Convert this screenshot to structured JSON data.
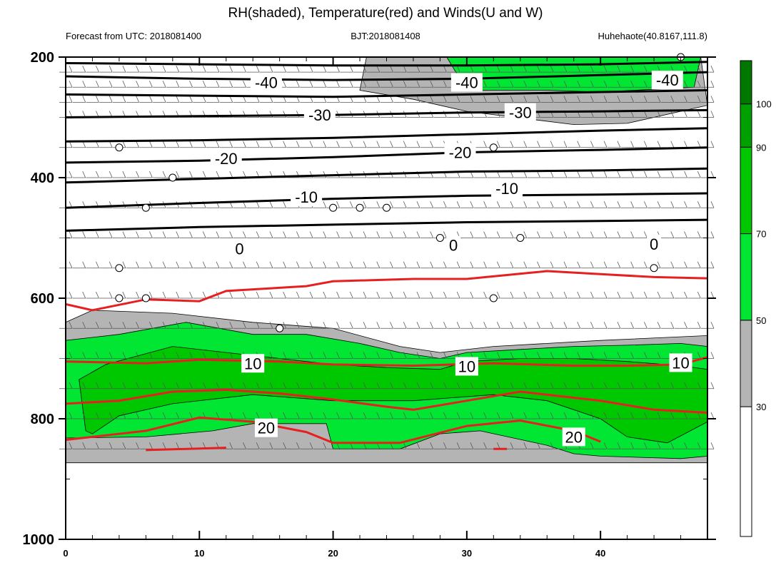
{
  "chart_data": {
    "type": "contour",
    "title": "RH(shaded), Temperature(red) and Winds(U and W)",
    "subtitle_left": "Forecast from UTC: 2018081400",
    "subtitle_center": "BJT:2018081408",
    "subtitle_right": "Huhehaote(40.8167,111.8)",
    "x_ticks": [
      "0",
      "10",
      "20",
      "30",
      "40"
    ],
    "x_tick_values": [
      0,
      10,
      20,
      30,
      40
    ],
    "xlim": [
      0,
      48
    ],
    "y_ticks": [
      "200",
      "400",
      "600",
      "800",
      "1000"
    ],
    "y_tick_values": [
      200,
      400,
      600,
      800,
      1000
    ],
    "ylim": [
      1000,
      200
    ],
    "wind_levels": [
      225,
      250,
      275,
      300,
      350,
      400,
      450,
      500,
      550,
      600,
      650,
      700,
      750,
      800,
      850
    ],
    "rh_colorbar": {
      "labels": [
        "30",
        "50",
        "70",
        "90",
        "100"
      ],
      "label_values": [
        30,
        50,
        70,
        90,
        100
      ],
      "bands": [
        {
          "from": 0,
          "to": 30,
          "color": "#ffffff"
        },
        {
          "from": 30,
          "to": 50,
          "color": "#b4b4b4"
        },
        {
          "from": 50,
          "to": 70,
          "color": "#00e632"
        },
        {
          "from": 70,
          "to": 90,
          "color": "#00c800"
        },
        {
          "from": 90,
          "to": 100,
          "color": "#00a000"
        },
        {
          "from": 100,
          "to": 110,
          "color": "#007800"
        }
      ]
    },
    "rh_regions": [
      {
        "name": "upper-dry",
        "color": "#b4b4b4",
        "points": [
          [
            22.5,
            200
          ],
          [
            47.5,
            200
          ],
          [
            48,
            280
          ],
          [
            42,
            310
          ],
          [
            38,
            312
          ],
          [
            30,
            290
          ],
          [
            26,
            270
          ],
          [
            22,
            255
          ]
        ]
      },
      {
        "name": "upper-moist",
        "color": "#00e632",
        "points": [
          [
            28.5,
            200
          ],
          [
            47.5,
            200
          ],
          [
            47,
            250
          ],
          [
            40,
            258
          ],
          [
            36,
            255
          ],
          [
            30,
            255
          ]
        ]
      },
      {
        "name": "lower-dry",
        "color": "#b4b4b4",
        "points": [
          [
            0,
            640
          ],
          [
            2,
            620
          ],
          [
            8,
            625
          ],
          [
            14,
            640
          ],
          [
            20,
            650
          ],
          [
            25,
            680
          ],
          [
            28,
            690
          ],
          [
            32,
            680
          ],
          [
            40,
            670
          ],
          [
            48,
            662
          ],
          [
            48,
            873
          ],
          [
            0,
            873
          ]
        ]
      },
      {
        "name": "lower-moist",
        "color": "#00e632",
        "points": [
          [
            0,
            670
          ],
          [
            4,
            660
          ],
          [
            9,
            640
          ],
          [
            14,
            660
          ],
          [
            18,
            660
          ],
          [
            22,
            675
          ],
          [
            25,
            690
          ],
          [
            28,
            700
          ],
          [
            30,
            690
          ],
          [
            34,
            685
          ],
          [
            38,
            680
          ],
          [
            42,
            678
          ],
          [
            46,
            675
          ],
          [
            48,
            680
          ],
          [
            48,
            862
          ],
          [
            46,
            866
          ],
          [
            40,
            862
          ],
          [
            38,
            858
          ],
          [
            36,
            844
          ],
          [
            31,
            820
          ],
          [
            28,
            825
          ],
          [
            25,
            850
          ],
          [
            20,
            850
          ],
          [
            19.5,
            808
          ],
          [
            14,
            808
          ],
          [
            11,
            820
          ],
          [
            6,
            830
          ],
          [
            0,
            832
          ]
        ]
      },
      {
        "name": "lower-wet",
        "color": "#00c800",
        "points": [
          [
            1,
            735
          ],
          [
            3,
            710
          ],
          [
            8,
            680
          ],
          [
            12,
            690
          ],
          [
            16,
            700
          ],
          [
            20,
            710
          ],
          [
            24,
            715
          ],
          [
            28,
            718
          ],
          [
            30,
            705
          ],
          [
            34,
            700
          ],
          [
            38,
            700
          ],
          [
            42,
            705
          ],
          [
            46,
            712
          ],
          [
            48,
            718
          ],
          [
            48,
            805
          ],
          [
            45,
            840
          ],
          [
            42,
            830
          ],
          [
            40,
            800
          ],
          [
            36,
            770
          ],
          [
            32,
            760
          ],
          [
            26,
            770
          ],
          [
            20,
            770
          ],
          [
            14,
            760
          ],
          [
            8,
            775
          ],
          [
            4,
            795
          ],
          [
            2,
            825
          ],
          [
            1.5,
            820
          ]
        ]
      }
    ],
    "temperature_black": [
      {
        "label": "-40",
        "points": [
          [
            0,
            210
          ],
          [
            10,
            212
          ],
          [
            20,
            214
          ],
          [
            30,
            214
          ],
          [
            40,
            212
          ],
          [
            48,
            208
          ]
        ]
      },
      {
        "label": "",
        "points": [
          [
            0,
            232
          ],
          [
            10,
            236
          ],
          [
            20,
            238
          ],
          [
            30,
            236
          ],
          [
            40,
            230
          ],
          [
            48,
            225
          ]
        ]
      },
      {
        "label": "",
        "points": [
          [
            0,
            262
          ],
          [
            10,
            264
          ],
          [
            20,
            266
          ],
          [
            30,
            262
          ],
          [
            40,
            258
          ],
          [
            48,
            255
          ]
        ]
      },
      {
        "label": "-30",
        "points": [
          [
            0,
            300
          ],
          [
            10,
            298
          ],
          [
            20,
            296
          ],
          [
            30,
            292
          ],
          [
            40,
            290
          ],
          [
            48,
            288
          ]
        ]
      },
      {
        "label": "",
        "points": [
          [
            0,
            340
          ],
          [
            10,
            338
          ],
          [
            20,
            334
          ],
          [
            30,
            328
          ],
          [
            40,
            322
          ],
          [
            48,
            318
          ]
        ]
      },
      {
        "label": "-20",
        "points": [
          [
            0,
            375
          ],
          [
            10,
            372
          ],
          [
            20,
            366
          ],
          [
            30,
            358
          ],
          [
            40,
            354
          ],
          [
            48,
            350
          ]
        ]
      },
      {
        "label": "-10",
        "points": [
          [
            0,
            408
          ],
          [
            10,
            402
          ],
          [
            20,
            396
          ],
          [
            30,
            390
          ],
          [
            40,
            388
          ],
          [
            48,
            385
          ]
        ]
      },
      {
        "label": "",
        "points": [
          [
            0,
            450
          ],
          [
            10,
            442
          ],
          [
            20,
            435
          ],
          [
            30,
            430
          ],
          [
            40,
            428
          ],
          [
            48,
            426
          ]
        ]
      },
      {
        "label": "0",
        "points": [
          [
            0,
            488
          ],
          [
            10,
            482
          ],
          [
            20,
            478
          ],
          [
            30,
            474
          ],
          [
            40,
            472
          ],
          [
            48,
            470
          ]
        ]
      }
    ],
    "temperature_red": [
      {
        "label": "",
        "points": [
          [
            0,
            610
          ],
          [
            2,
            620
          ],
          [
            6,
            602
          ],
          [
            10,
            605
          ],
          [
            12,
            588
          ],
          [
            18,
            580
          ],
          [
            20,
            572
          ],
          [
            26,
            568
          ],
          [
            30,
            568
          ],
          [
            36,
            555
          ],
          [
            40,
            560
          ],
          [
            44,
            565
          ],
          [
            48,
            567
          ]
        ]
      },
      {
        "label": "10",
        "points": [
          [
            0,
            705
          ],
          [
            6,
            708
          ],
          [
            10,
            702
          ],
          [
            16,
            705
          ],
          [
            20,
            710
          ],
          [
            26,
            712
          ],
          [
            32,
            708
          ],
          [
            38,
            712
          ],
          [
            42,
            712
          ],
          [
            46,
            710
          ],
          [
            48,
            698
          ]
        ]
      },
      {
        "label": "",
        "points": [
          [
            0,
            775
          ],
          [
            4,
            770
          ],
          [
            8,
            755
          ],
          [
            12,
            752
          ],
          [
            16,
            758
          ],
          [
            20,
            768
          ],
          [
            24,
            780
          ],
          [
            26,
            785
          ],
          [
            30,
            770
          ],
          [
            34,
            755
          ],
          [
            40,
            770
          ],
          [
            44,
            785
          ],
          [
            48,
            790
          ]
        ]
      },
      {
        "label": "20",
        "points": [
          [
            0,
            835
          ],
          [
            6,
            820
          ],
          [
            10,
            798
          ],
          [
            14,
            805
          ],
          [
            18,
            822
          ],
          [
            20,
            840
          ],
          [
            25,
            840
          ],
          [
            30,
            812
          ],
          [
            34,
            803
          ],
          [
            38,
            820
          ],
          [
            40,
            838
          ]
        ]
      },
      {
        "label": "",
        "points": [
          [
            6,
            852
          ],
          [
            12,
            848
          ]
        ]
      },
      {
        "label": "",
        "points": [
          [
            32,
            850
          ],
          [
            33,
            850
          ]
        ]
      }
    ],
    "contour_labels": [
      {
        "text": "-40",
        "x": 15,
        "y": 242,
        "color": "black"
      },
      {
        "text": "-40",
        "x": 30,
        "y": 242,
        "color": "black"
      },
      {
        "text": "-40",
        "x": 45,
        "y": 238,
        "color": "black"
      },
      {
        "text": "-30",
        "x": 19,
        "y": 296,
        "color": "black"
      },
      {
        "text": "-30",
        "x": 34,
        "y": 292,
        "color": "black"
      },
      {
        "text": "-20",
        "x": 12,
        "y": 368,
        "color": "black"
      },
      {
        "text": "-20",
        "x": 29.5,
        "y": 358,
        "color": "black"
      },
      {
        "text": "-10",
        "x": 18,
        "y": 432,
        "color": "black"
      },
      {
        "text": "-10",
        "x": 33,
        "y": 418,
        "color": "black"
      },
      {
        "text": "0",
        "x": 13,
        "y": 518,
        "color": "black"
      },
      {
        "text": "0",
        "x": 29,
        "y": 512,
        "color": "black"
      },
      {
        "text": "0",
        "x": 44,
        "y": 510,
        "color": "black"
      },
      {
        "text": "10",
        "x": 14,
        "y": 708,
        "color": "red"
      },
      {
        "text": "10",
        "x": 30,
        "y": 713,
        "color": "red"
      },
      {
        "text": "10",
        "x": 46,
        "y": 707,
        "color": "red"
      },
      {
        "text": "20",
        "x": 15,
        "y": 815,
        "color": "red"
      },
      {
        "text": "20",
        "x": 38,
        "y": 830,
        "color": "red"
      }
    ],
    "calm_markers": [
      [
        4,
        350
      ],
      [
        8,
        400
      ],
      [
        6,
        450
      ],
      [
        20,
        450
      ],
      [
        22,
        450
      ],
      [
        24,
        450
      ],
      [
        32,
        350
      ],
      [
        28,
        500
      ],
      [
        34,
        500
      ],
      [
        4,
        550
      ],
      [
        44,
        550
      ],
      [
        4,
        600
      ],
      [
        6,
        600
      ],
      [
        32,
        600
      ],
      [
        16,
        650
      ],
      [
        46,
        200
      ]
    ]
  }
}
